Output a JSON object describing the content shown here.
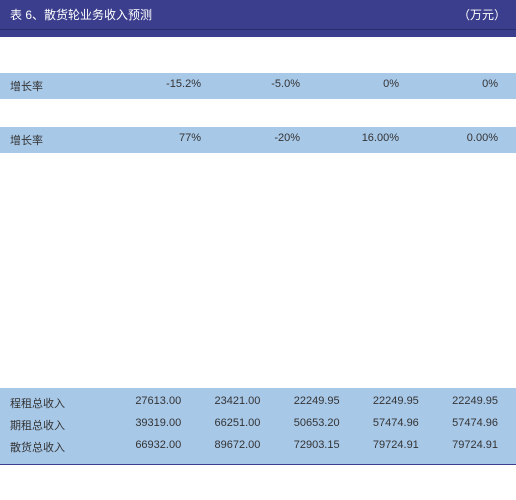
{
  "title": {
    "left": "表 6、散货轮业务收入预测",
    "right": "（万元）"
  },
  "growth1": {
    "label": "增长率",
    "values": [
      "-15.2%",
      "-5.0%",
      "0%",
      "0%"
    ]
  },
  "growth2": {
    "label": "增长率",
    "values": [
      "77%",
      "-20%",
      "16.00%",
      "0.00%"
    ]
  },
  "totals": [
    {
      "label": "程租总收入",
      "values": [
        "27613.00",
        "23421.00",
        "22249.95",
        "22249.95",
        "22249.95"
      ]
    },
    {
      "label": "期租总收入",
      "values": [
        "39319.00",
        "66251.00",
        "50653.20",
        "57474.96",
        "57474.96"
      ]
    },
    {
      "label": "散货总收入",
      "values": [
        "66932.00",
        "89672.00",
        "72903.15",
        "79724.91",
        "79724.91"
      ]
    }
  ],
  "colors": {
    "header_bg": "#3b3e8c",
    "highlight_bg": "#a8c8e8",
    "text_light": "#ffffff",
    "text_dark": "#333333"
  }
}
